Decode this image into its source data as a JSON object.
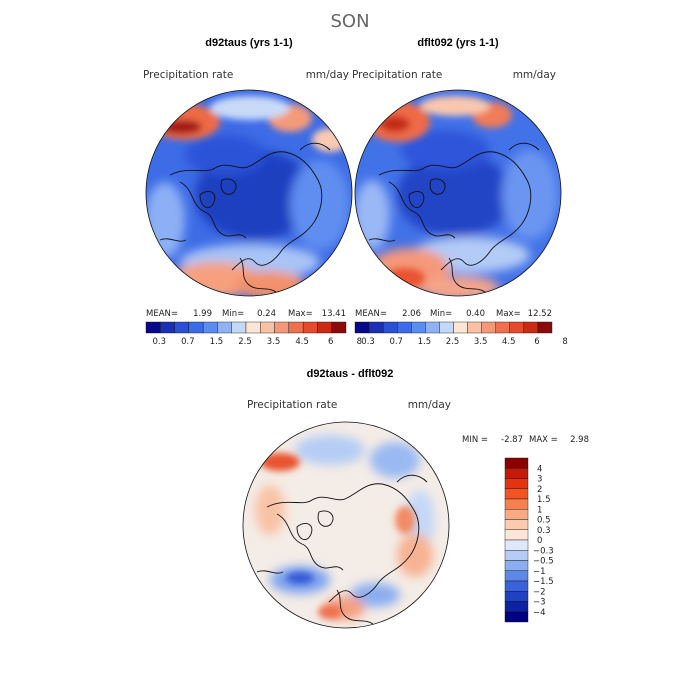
{
  "figure": {
    "title": "SON",
    "bg": "#ffffff"
  },
  "chart_data": [
    {
      "type": "heatmap",
      "title": "d92taus (yrs 1-1)",
      "field_label": "Precipitation rate",
      "units": "mm/day",
      "projection": "north polar stereographic",
      "stats": {
        "mean_label": "MEAN=",
        "mean": "1.99",
        "min_label": "Min=",
        "min": "0.24",
        "max_label": "Max=",
        "max": "13.41"
      },
      "colorbar": {
        "orientation": "horizontal",
        "colors": [
          "#08088a",
          "#1a2fb5",
          "#2b50d6",
          "#3b6be8",
          "#5b8cf0",
          "#8fb2f5",
          "#c4d8f8",
          "#fbe5d6",
          "#f8c1a6",
          "#f3997a",
          "#ee7050",
          "#e54a2c",
          "#cc2a14",
          "#8b0a0a"
        ],
        "labels": [
          "0.3",
          "0.7",
          "1.5",
          "2.5",
          "3.5",
          "4.5",
          "6",
          "8"
        ]
      }
    },
    {
      "type": "heatmap",
      "title": "dflt092 (yrs 1-1)",
      "field_label": "Precipitation rate",
      "units": "mm/day",
      "projection": "north polar stereographic",
      "stats": {
        "mean_label": "MEAN=",
        "mean": "2.06",
        "min_label": "Min=",
        "min": "0.40",
        "max_label": "Max=",
        "max": "12.52"
      },
      "colorbar": {
        "orientation": "horizontal",
        "colors": [
          "#08088a",
          "#1a2fb5",
          "#2b50d6",
          "#3b6be8",
          "#5b8cf0",
          "#8fb2f5",
          "#c4d8f8",
          "#fbe5d6",
          "#f8c1a6",
          "#f3997a",
          "#ee7050",
          "#e54a2c",
          "#cc2a14",
          "#8b0a0a"
        ],
        "labels": [
          "0.3",
          "0.7",
          "1.5",
          "2.5",
          "3.5",
          "4.5",
          "6",
          "8"
        ]
      }
    },
    {
      "type": "heatmap",
      "title": "d92taus - dflt092",
      "field_label": "Precipitation rate",
      "units": "mm/day",
      "projection": "north polar stereographic",
      "stats": {
        "min_label": "MIN =",
        "min": "-2.87",
        "max_label": "MAX =",
        "max": "2.98"
      },
      "colorbar": {
        "orientation": "vertical",
        "colors": [
          "#8b0000",
          "#c41a0a",
          "#e3330f",
          "#f25522",
          "#f7804f",
          "#f9aa85",
          "#fbcbb0",
          "#fde6d6",
          "#dde8fa",
          "#b5cdf5",
          "#8aaef0",
          "#5e88e8",
          "#3a63db",
          "#2141c4",
          "#0b23a3",
          "#000080"
        ],
        "labels": [
          "4",
          "3",
          "2",
          "1.5",
          "1",
          "0.5",
          "0.3",
          "0",
          "-0.3",
          "-0.5",
          "-1",
          "-1.5",
          "-2",
          "-3",
          "-4"
        ]
      }
    }
  ]
}
